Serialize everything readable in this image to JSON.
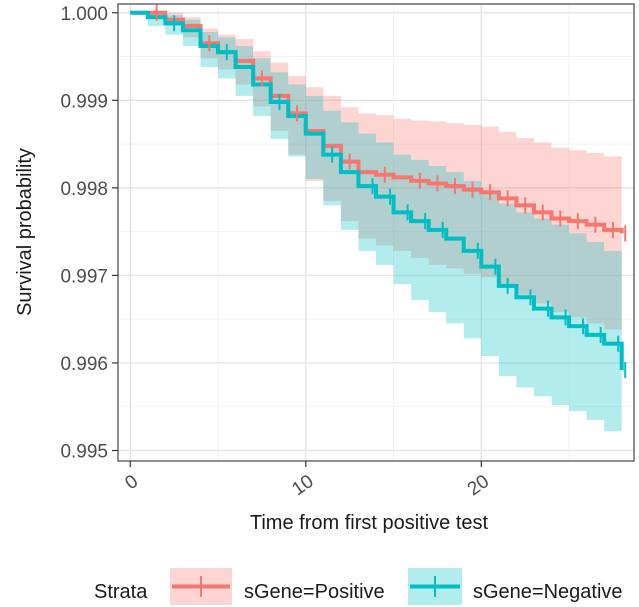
{
  "chart_data": {
    "type": "line",
    "subtype": "kaplan-meier survival curve with confidence bands",
    "xlabel": "Time from first positive test",
    "ylabel": "Survival probability",
    "xlim": [
      -0.7,
      28.7
    ],
    "ylim": [
      0.99488,
      1.0001
    ],
    "x_ticks": [
      0,
      10,
      20
    ],
    "x_tick_labels": [
      "0",
      "10",
      "20"
    ],
    "y_ticks": [
      0.995,
      0.996,
      0.997,
      0.998,
      0.999,
      1.0
    ],
    "y_tick_labels": [
      "0.995",
      "0.996",
      "0.997",
      "0.998",
      "0.999",
      "1.000"
    ],
    "grid": true,
    "legend": {
      "title": "Strata",
      "position": "bottom"
    },
    "series": [
      {
        "name": "sGene=Positive",
        "color": "#F8766D",
        "x": [
          0,
          1,
          2,
          3,
          4,
          5,
          6,
          7,
          8,
          9,
          10,
          11,
          12,
          13,
          14,
          15,
          16,
          17,
          18,
          19,
          20,
          21,
          22,
          23,
          24,
          25,
          26,
          27,
          28
        ],
        "y": [
          1.0,
          1.0,
          0.99992,
          0.99985,
          0.99965,
          0.99955,
          0.99945,
          0.99925,
          0.99905,
          0.99885,
          0.99865,
          0.99848,
          0.9983,
          0.99818,
          0.99815,
          0.99812,
          0.99808,
          0.99805,
          0.99802,
          0.99798,
          0.99795,
          0.99788,
          0.9978,
          0.99772,
          0.99765,
          0.99762,
          0.99758,
          0.99752,
          0.99748
        ],
        "lower": [
          1.0,
          0.99995,
          0.99985,
          0.99972,
          0.99948,
          0.99935,
          0.99918,
          0.99893,
          0.99865,
          0.99838,
          0.99808,
          0.99785,
          0.99762,
          0.99742,
          0.99734,
          0.99728,
          0.9972,
          0.99712,
          0.99708,
          0.99702,
          0.99698,
          0.99688,
          0.99678,
          0.99668,
          0.99658,
          0.99652,
          0.99645,
          0.99638,
          0.99712
        ],
        "upper": [
          1.0,
          1.0,
          1.0,
          0.99995,
          0.99982,
          0.99975,
          0.9997,
          0.99956,
          0.99943,
          0.99928,
          0.99915,
          0.99905,
          0.99892,
          0.99885,
          0.99883,
          0.99879,
          0.99877,
          0.99876,
          0.99874,
          0.99872,
          0.9987,
          0.99864,
          0.99857,
          0.99852,
          0.99846,
          0.99843,
          0.9984,
          0.99836,
          0.99838
        ],
        "censor_x": [
          1.5,
          4.5,
          7.5,
          9.5,
          12.5,
          14.5,
          16.5,
          17.5,
          18.5,
          19.5,
          20.5,
          21.5,
          22.5,
          23.5,
          24.5,
          25.5,
          26.5,
          27.5,
          28.2
        ]
      },
      {
        "name": "sGene=Negative",
        "color": "#00BFC4",
        "x": [
          0,
          1,
          2,
          3,
          4,
          5,
          6,
          7,
          8,
          9,
          10,
          11,
          12,
          13,
          14,
          15,
          16,
          17,
          18,
          19,
          20,
          21,
          22,
          23,
          24,
          25,
          26,
          27,
          28
        ],
        "y": [
          1.0,
          0.99995,
          0.99988,
          0.9998,
          0.99962,
          0.99955,
          0.99938,
          0.99918,
          0.99898,
          0.99882,
          0.99862,
          0.99838,
          0.99818,
          0.99802,
          0.9979,
          0.99772,
          0.99762,
          0.99752,
          0.99742,
          0.99728,
          0.9971,
          0.99688,
          0.99675,
          0.99662,
          0.99652,
          0.99642,
          0.99632,
          0.99622,
          0.99592
        ],
        "lower": [
          1.0,
          0.99985,
          0.99975,
          0.99962,
          0.99938,
          0.99925,
          0.99905,
          0.99882,
          0.99856,
          0.99836,
          0.9981,
          0.9978,
          0.99752,
          0.99728,
          0.99712,
          0.9969,
          0.99672,
          0.99658,
          0.99645,
          0.99628,
          0.99608,
          0.99585,
          0.99572,
          0.99562,
          0.99552,
          0.99545,
          0.99535,
          0.99522,
          0.99555
        ],
        "upper": [
          1.0,
          1.0,
          0.99997,
          0.99992,
          0.99978,
          0.99972,
          0.99962,
          0.99948,
          0.99932,
          0.99918,
          0.99905,
          0.99888,
          0.99875,
          0.99862,
          0.99852,
          0.99838,
          0.99832,
          0.99825,
          0.99818,
          0.99808,
          0.99795,
          0.99782,
          0.99772,
          0.99765,
          0.99758,
          0.99748,
          0.99738,
          0.99728,
          0.99668
        ],
        "censor_x": [
          2.5,
          5.5,
          8.5,
          11.5,
          13.8,
          14.8,
          15.8,
          16.8,
          17.8,
          19.8,
          20.8,
          21.5,
          22.8,
          23.8,
          24.8,
          25.8,
          26.8,
          27.8,
          28.2
        ]
      }
    ]
  }
}
